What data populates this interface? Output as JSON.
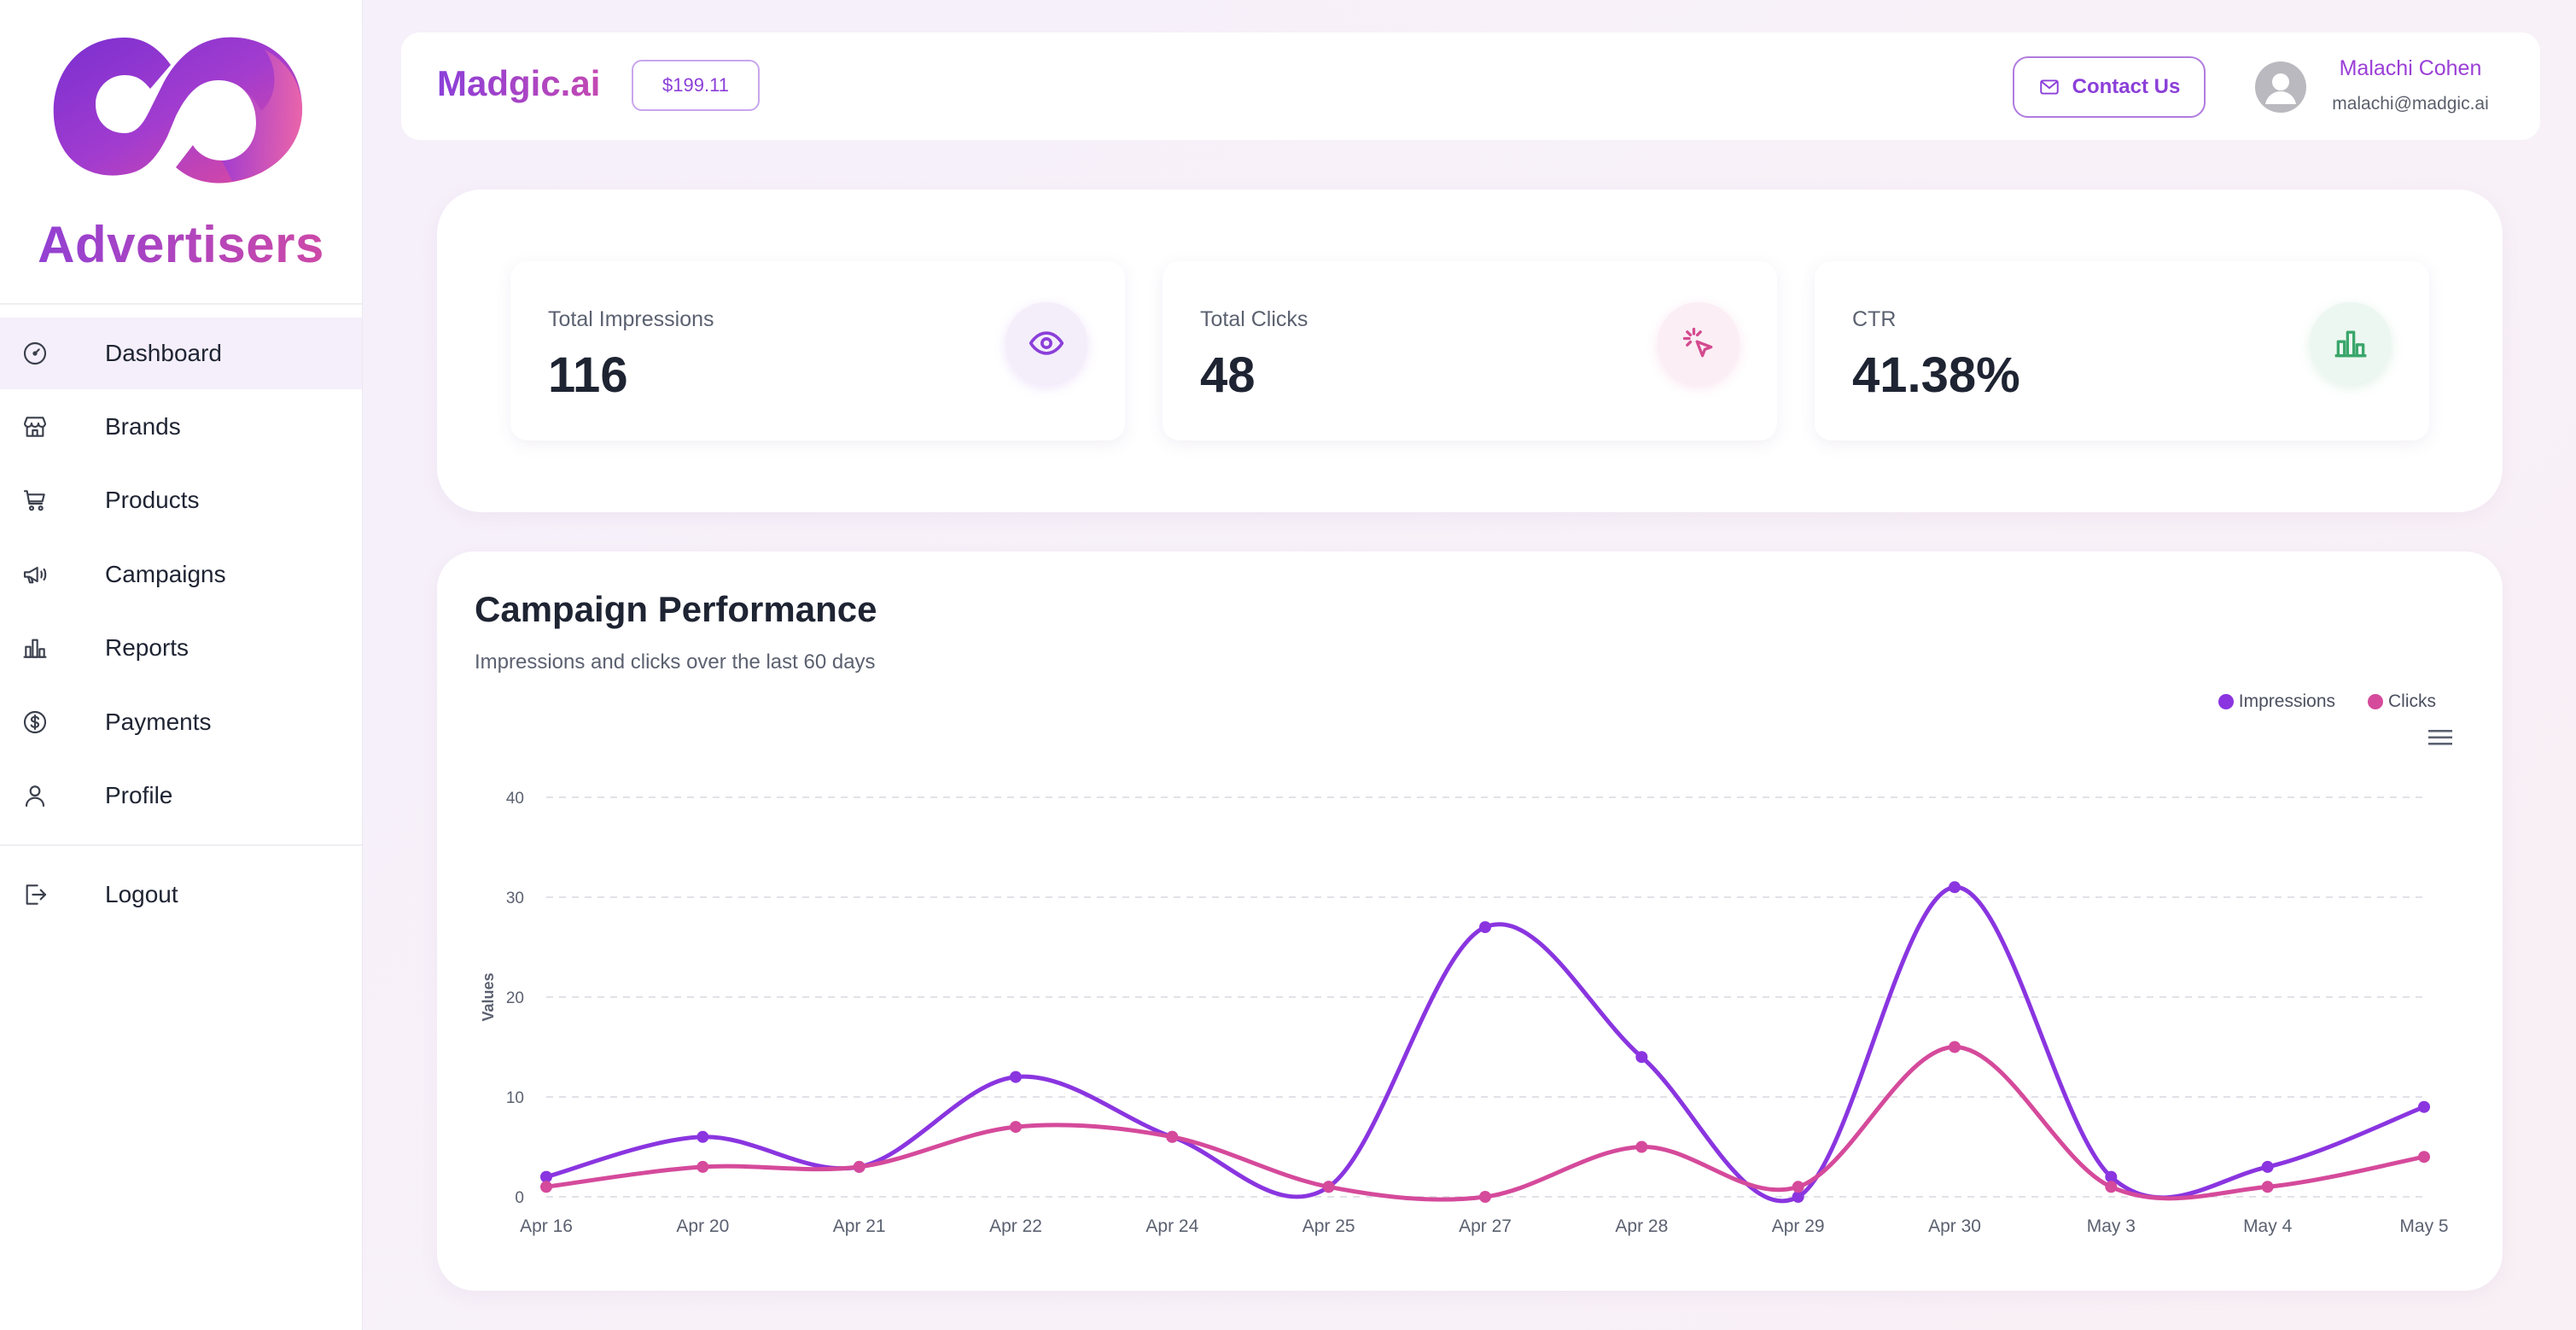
{
  "sidebar": {
    "brand_title": "Advertisers",
    "items": [
      {
        "label": "Dashboard",
        "icon": "gauge-icon",
        "active": true
      },
      {
        "label": "Brands",
        "icon": "store-icon"
      },
      {
        "label": "Products",
        "icon": "cart-icon"
      },
      {
        "label": "Campaigns",
        "icon": "megaphone-icon"
      },
      {
        "label": "Reports",
        "icon": "bar-chart-icon"
      },
      {
        "label": "Payments",
        "icon": "dollar-circle-icon"
      },
      {
        "label": "Profile",
        "icon": "user-icon"
      }
    ],
    "logout_label": "Logout"
  },
  "header": {
    "brand": "Madgic.ai",
    "balance": "$199.11",
    "contact_label": "Contact Us",
    "user_name": "Malachi Cohen",
    "user_email": "malachi@madgic.ai"
  },
  "stats": [
    {
      "label": "Total Impressions",
      "value": "116",
      "icon": "eye-icon",
      "color": "#8b3fd9",
      "bg": "#f4eefb"
    },
    {
      "label": "Total Clicks",
      "value": "48",
      "icon": "cursor-click-icon",
      "color": "#d44a8f",
      "bg": "#fbeef4"
    },
    {
      "label": "CTR",
      "value": "41.38%",
      "icon": "bar-chart-icon",
      "color": "#3aa66b",
      "bg": "#edf7f1"
    }
  ],
  "chart": {
    "title": "Campaign Performance",
    "subtitle": "Impressions and clicks over the last 60 days"
  },
  "chart_data": {
    "type": "line",
    "smooth": true,
    "categories": [
      "Apr 16",
      "Apr 20",
      "Apr 21",
      "Apr 22",
      "Apr 24",
      "Apr 25",
      "Apr 27",
      "Apr 28",
      "Apr 29",
      "Apr 30",
      "May 3",
      "May 4",
      "May 5"
    ],
    "series": [
      {
        "name": "Impressions",
        "color": "#8a35e0",
        "values": [
          2,
          6,
          3,
          12,
          6,
          1,
          27,
          14,
          0,
          31,
          2,
          3,
          9
        ]
      },
      {
        "name": "Clicks",
        "color": "#d54a9b",
        "values": [
          1,
          3,
          3,
          7,
          6,
          1,
          0,
          5,
          1,
          15,
          1,
          1,
          4
        ]
      }
    ],
    "ylabel": "Values",
    "ylim": [
      0,
      40
    ],
    "yticks": [
      0,
      10,
      20,
      30,
      40
    ],
    "grid": true,
    "legend_position": "top-right"
  }
}
